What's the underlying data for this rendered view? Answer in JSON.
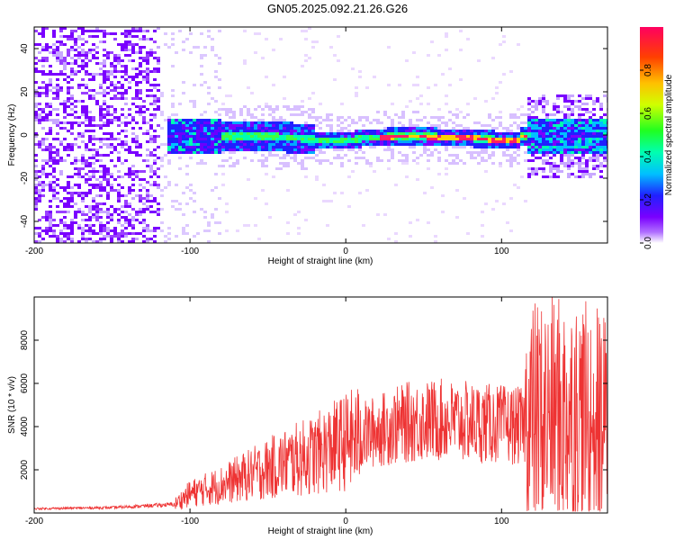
{
  "title": "GN05.2025.092.21.26.G26",
  "chart_data": [
    {
      "type": "heatmap",
      "xlabel": "Height of straight line (km)",
      "ylabel": "Frequency (Hz)",
      "xlim": [
        -200,
        168
      ],
      "ylim": [
        -50,
        50
      ],
      "xticks": [
        "-200",
        "-100",
        "0",
        "100"
      ],
      "yticks": [
        "-40",
        "-20",
        "0",
        "20",
        "40"
      ],
      "ridge_profile": {
        "x": [
          -110,
          -80,
          -50,
          -30,
          -10,
          0,
          10,
          30,
          50,
          80,
          110
        ],
        "freq_center": [
          1,
          0,
          0,
          -1,
          -2,
          -2,
          -1,
          0,
          0,
          -1,
          -2
        ]
      },
      "colorbar": {
        "label": "Normalized spectral amplitude",
        "ticks": [
          "0.0",
          "0.2",
          "0.4",
          "0.6",
          "0.8"
        ],
        "range": [
          0,
          1
        ]
      }
    },
    {
      "type": "line",
      "xlabel": "Height of straight line (km)",
      "ylabel": "SNR (10 * v/v)",
      "xlim": [
        -200,
        168
      ],
      "ylim": [
        0,
        10000
      ],
      "xticks": [
        "-200",
        "-100",
        "0",
        "100"
      ],
      "yticks": [
        "2000",
        "4000",
        "6000",
        "8000"
      ],
      "series": [
        {
          "x": [
            -200,
            -150,
            -110,
            -100,
            -80,
            -60,
            -40,
            -20,
            0,
            20,
            40,
            60,
            80,
            100,
            115,
            120,
            140,
            160,
            168
          ],
          "y": [
            200,
            250,
            400,
            900,
            1300,
            1800,
            2300,
            2700,
            3300,
            3800,
            4200,
            4300,
            4200,
            4100,
            4000,
            4500,
            4600,
            4400,
            4300
          ],
          "color": "#ee3333"
        }
      ]
    }
  ]
}
